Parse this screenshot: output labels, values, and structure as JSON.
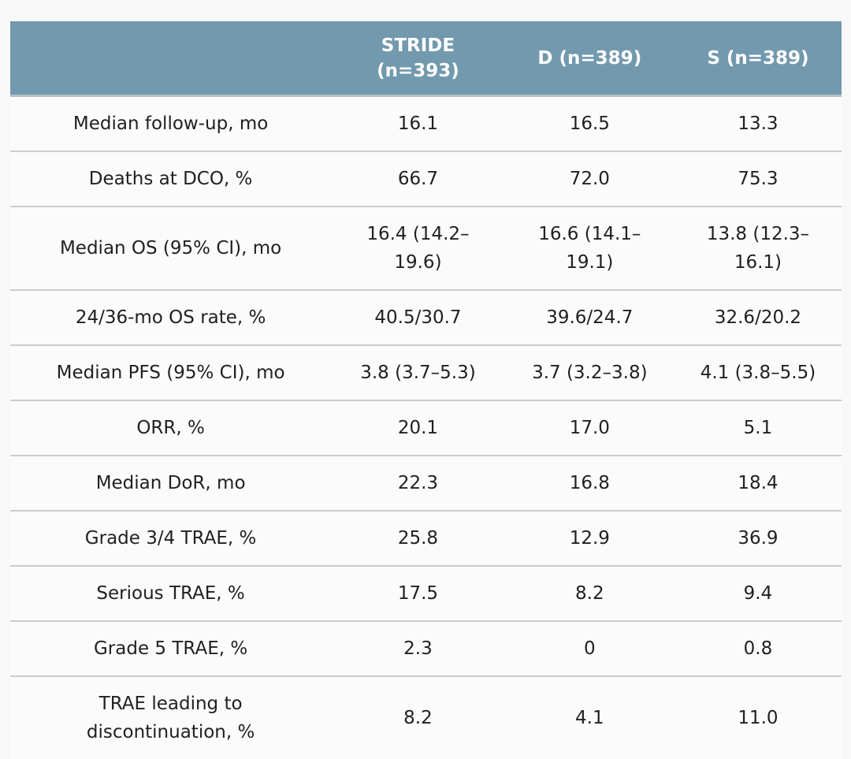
{
  "table": {
    "header": {
      "bg_color": "#7299ad",
      "text_color": "#ffffff",
      "columns": [
        "",
        "STRIDE\n(n=393)",
        "D (n=389)",
        "S (n=389)"
      ]
    },
    "rows": [
      {
        "label": "Median follow-up, mo",
        "values": [
          "16.1",
          "16.5",
          "13.3"
        ]
      },
      {
        "label": "Deaths at DCO, %",
        "values": [
          "66.7",
          "72.0",
          "75.3"
        ]
      },
      {
        "label": "Median OS (95% CI), mo",
        "values": [
          "16.4 (14.2–\n19.6)",
          "16.6 (14.1–\n19.1)",
          "13.8 (12.3–\n16.1)"
        ]
      },
      {
        "label": "24/36-mo OS rate, %",
        "values": [
          "40.5/30.7",
          "39.6/24.7",
          "32.6/20.2"
        ]
      },
      {
        "label": "Median PFS (95% CI), mo",
        "values": [
          "3.8 (3.7–5.3)",
          "3.7 (3.2–3.8)",
          "4.1 (3.8–5.5)"
        ]
      },
      {
        "label": "ORR, %",
        "values": [
          "20.1",
          "17.0",
          "5.1"
        ]
      },
      {
        "label": "Median DoR, mo",
        "values": [
          "22.3",
          "16.8",
          "18.4"
        ]
      },
      {
        "label": "Grade 3/4 TRAE, %",
        "values": [
          "25.8",
          "12.9",
          "36.9"
        ]
      },
      {
        "label": "Serious TRAE, %",
        "values": [
          "17.5",
          "8.2",
          "9.4"
        ]
      },
      {
        "label": "Grade 5 TRAE, %",
        "values": [
          "2.3",
          "0",
          "0.8"
        ]
      },
      {
        "label": "TRAE leading to\ndiscontinuation, %",
        "values": [
          "8.2",
          "4.1",
          "11.0"
        ]
      }
    ]
  }
}
